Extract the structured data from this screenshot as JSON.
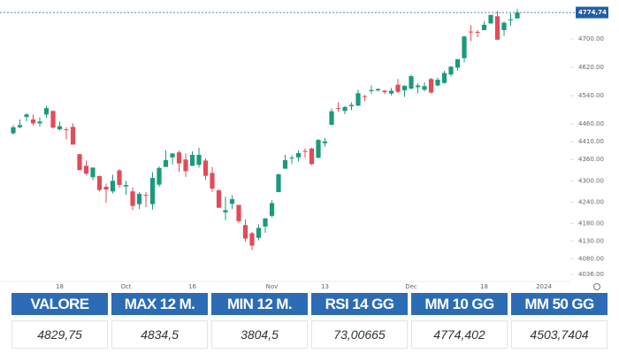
{
  "chart_data": {
    "type": "candlestick",
    "categories": [
      null,
      null,
      null,
      null,
      null,
      null,
      null,
      "18",
      null,
      null,
      null,
      null,
      null,
      null,
      null,
      null,
      null,
      "Oct",
      null,
      null,
      null,
      null,
      null,
      null,
      null,
      null,
      null,
      "16",
      null,
      null,
      null,
      null,
      null,
      null,
      null,
      null,
      null,
      null,
      null,
      "Nov",
      null,
      null,
      null,
      null,
      null,
      null,
      null,
      "13",
      null,
      null,
      null,
      null,
      null,
      null,
      null,
      null,
      null,
      null,
      null,
      null,
      "Dec",
      null,
      null,
      null,
      null,
      null,
      null,
      null,
      null,
      null,
      null,
      "18",
      null,
      null,
      null,
      null,
      null,
      null,
      null,
      null,
      "2024"
    ],
    "open": [
      4434,
      4451,
      4480,
      4473,
      4462,
      4487,
      4497,
      4445,
      4445,
      4452,
      4375,
      4342,
      4310,
      4313,
      4283,
      4270,
      4329,
      4284,
      4270,
      4234,
      4260,
      4234,
      4289,
      4339,
      4366,
      4380,
      4360,
      4342,
      4345,
      4357,
      4322,
      4273,
      4211,
      4235,
      4232,
      4175,
      4152,
      4139,
      4171,
      4201,
      4268,
      4334,
      4364,
      4366,
      4384,
      4391,
      4365,
      4406,
      4458,
      4505,
      4497,
      4510,
      4512,
      4539,
      4553,
      4555,
      4554,
      4546,
      4571,
      4555,
      4560,
      4564,
      4557,
      4587,
      4569,
      4576,
      4600,
      4619,
      4646,
      4721,
      4720,
      4725,
      4744,
      4764,
      4725,
      4754,
      4758,
      null,
      null,
      null,
      null
    ],
    "high": [
      4457,
      4473,
      4491,
      4487,
      4479,
      4511,
      4498,
      4467,
      4451,
      4462,
      4376,
      4357,
      4338,
      4315,
      4292,
      4317,
      4333,
      4300,
      4281,
      4268,
      4268,
      4324,
      4341,
      4386,
      4378,
      4385,
      4377,
      4383,
      4393,
      4364,
      4339,
      4276,
      4255,
      4259,
      4232,
      4191,
      4156,
      4177,
      4194,
      4245,
      4320,
      4373,
      4372,
      4386,
      4391,
      4393,
      4418,
      4421,
      4504,
      4521,
      4511,
      4521,
      4557,
      4542,
      4569,
      4560,
      4556,
      4562,
      4587,
      4569,
      4599,
      4575,
      4578,
      4590,
      4591,
      4610,
      4623,
      4643,
      4709,
      4739,
      4725,
      4749,
      4768,
      4779,
      4749,
      4772,
      4785,
      null,
      null,
      null,
      null
    ],
    "low": [
      4430,
      4448,
      4468,
      4456,
      4453,
      4478,
      4447,
      4442,
      4417,
      4402,
      4330,
      4316,
      4302,
      4270,
      4238,
      4264,
      4280,
      4260,
      4217,
      4220,
      4225,
      4219,
      4283,
      4339,
      4346,
      4325,
      4311,
      4342,
      4337,
      4303,
      4269,
      4223,
      4189,
      4220,
      4181,
      4128,
      4104,
      4132,
      4153,
      4197,
      4268,
      4334,
      4347,
      4355,
      4365,
      4344,
      4363,
      4396,
      4458,
      4495,
      4488,
      4499,
      4511,
      4525,
      4546,
      4552,
      4544,
      4541,
      4547,
      4537,
      4558,
      4547,
      4552,
      4546,
      4566,
      4574,
      4594,
      4611,
      4634,
      4694,
      4705,
      4725,
      4743,
      4698,
      4709,
      4737,
      4758,
      null,
      null,
      null,
      null
    ],
    "close": [
      4451,
      4457,
      4487,
      4462,
      4467,
      4505,
      4450,
      4454,
      4444,
      4402,
      4330,
      4320,
      4337,
      4274,
      4275,
      4300,
      4288,
      4288,
      4229,
      4263,
      4258,
      4308,
      4336,
      4358,
      4377,
      4349,
      4327,
      4373,
      4373,
      4314,
      4278,
      4224,
      4217,
      4248,
      4186,
      4137,
      4117,
      4167,
      4194,
      4237,
      4318,
      4358,
      4365,
      4378,
      4383,
      4347,
      4415,
      4411,
      4496,
      4503,
      4508,
      4514,
      4547,
      4538,
      4556,
      4559,
      4550,
      4554,
      4551,
      4568,
      4595,
      4569,
      4567,
      4549,
      4585,
      4604,
      4622,
      4643,
      4707,
      4719,
      4719,
      4740,
      4768,
      4698,
      4746,
      4755,
      4774.74,
      null,
      null,
      null,
      null
    ],
    "up_color": "#1a9a7c",
    "down_color": "#e24b57",
    "ylim": [
      4016,
      4790
    ],
    "yticks": [
      {
        "value": 4036,
        "label": "4036.00"
      },
      {
        "value": 4080,
        "label": "4080.00"
      },
      {
        "value": 4130,
        "label": "4130.00"
      },
      {
        "value": 4180,
        "label": "4180.00"
      },
      {
        "value": 4240,
        "label": "4240.00"
      },
      {
        "value": 4300,
        "label": "4300.00"
      },
      {
        "value": 4360,
        "label": "4360.00"
      },
      {
        "value": 4410,
        "label": "4410.00"
      },
      {
        "value": 4460,
        "label": "4460.00"
      },
      {
        "value": 4540,
        "label": "4540.00"
      },
      {
        "value": 4620,
        "label": "4620.00"
      },
      {
        "value": 4700,
        "label": "4700.00"
      }
    ],
    "last_price": {
      "value": 4774.74,
      "label": "4774,74"
    },
    "last_price_color": "#1f5fa6"
  },
  "table": {
    "headers": [
      "VALORE",
      "MAX 12 M.",
      "MIN 12 M.",
      "RSI 14 GG",
      "MM 10 GG",
      "MM 50 GG"
    ],
    "values": [
      "4829,75",
      "4834,5",
      "3804,5",
      "73,00665",
      "4774,402",
      "4503,7404"
    ]
  }
}
